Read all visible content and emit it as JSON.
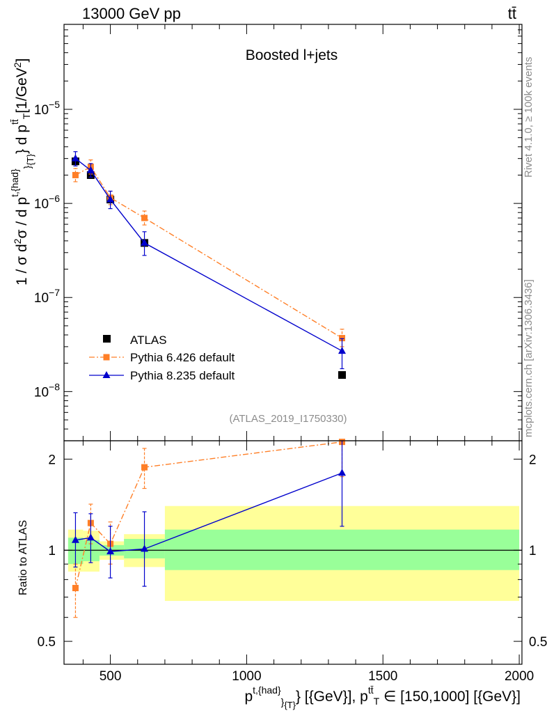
{
  "header": {
    "energy_label": "13000 GeV pp",
    "process_label": "tt̄"
  },
  "side_labels": {
    "rivet": "Rivet 4.1.0, ≥ 100k events",
    "mcplots": "mcplots.cern.ch [arXiv:1306.3436]"
  },
  "chart_data": [
    {
      "type": "scatter",
      "panel": "main",
      "title": "Boosted l+jets",
      "analysis_id": "(ATLAS_2019_I1750330)",
      "ylabel": "1 / σ d²σ / d p^{t,{had}}_{T} d p^{tt̄}_{T} [1/GeV²]",
      "yscale": "log",
      "ylim": [
        3e-09,
        8e-05
      ],
      "xlim": [
        330,
        2010
      ],
      "y_ticks": [
        {
          "value": 1e-08,
          "mantissa": "10",
          "exponent": "−8"
        },
        {
          "value": 1e-07,
          "mantissa": "10",
          "exponent": "−7"
        },
        {
          "value": 1e-06,
          "mantissa": "10",
          "exponent": "−6"
        },
        {
          "value": 1e-05,
          "mantissa": "10",
          "exponent": "−5"
        }
      ],
      "series": [
        {
          "name": "ATLAS",
          "style": "data",
          "color": "#000000",
          "marker": "square",
          "x": [
            372,
            428,
            500,
            625,
            1350
          ],
          "y": [
            2.8e-06,
            2e-06,
            1.1e-06,
            3.8e-07,
            1.5e-08
          ]
        },
        {
          "name": "Pythia 6.426 default",
          "style": "dashdot",
          "color": "#ff7f27",
          "marker": "square",
          "x": [
            372,
            428,
            500,
            625,
            1350
          ],
          "y": [
            2e-06,
            2.45e-06,
            1.15e-06,
            7e-07,
            3.7e-08
          ],
          "y_err_low": [
            1.7e-06,
            2.05e-06,
            9.7e-07,
            5.9e-07,
            3e-08
          ],
          "y_err_high": [
            2.35e-06,
            2.9e-06,
            1.35e-06,
            8.3e-07,
            4.6e-08
          ]
        },
        {
          "name": "Pythia 8.235 default",
          "style": "solid",
          "color": "#0000cc",
          "marker": "triangle",
          "x": [
            372,
            428,
            500,
            625,
            1350
          ],
          "y": [
            3e-06,
            2.25e-06,
            1.1e-06,
            3.8e-07,
            2.7e-08
          ],
          "y_err_low": [
            2.5e-06,
            1.9e-06,
            8.8e-07,
            2.8e-07,
            1.75e-08
          ],
          "y_err_high": [
            3.55e-06,
            2.65e-06,
            1.35e-06,
            5e-07,
            3.65e-08
          ]
        }
      ],
      "legend_position": "lower-left"
    },
    {
      "type": "scatter",
      "panel": "ratio",
      "ylabel": "Ratio to ATLAS",
      "xlabel": "p^{t,{had}}_{T} [{GeV}], p^{tt̄}_{T} ∈ [150,1000] [{GeV}]",
      "yscale": "log",
      "ylim": [
        0.42,
        2.3
      ],
      "xlim": [
        330,
        2010
      ],
      "x_ticks": [
        500,
        1000,
        1500,
        2000
      ],
      "y_ticks": [
        0.5,
        1,
        2
      ],
      "reference_line": 1,
      "bands": [
        {
          "x_low": 345,
          "x_high": 400,
          "inner": [
            0.9,
            1.1
          ],
          "outer": [
            0.85,
            1.17
          ]
        },
        {
          "x_low": 400,
          "x_high": 460,
          "inner": [
            0.92,
            1.08
          ],
          "outer": [
            0.85,
            1.16
          ]
        },
        {
          "x_low": 460,
          "x_high": 550,
          "inner": [
            0.96,
            1.04
          ],
          "outer": [
            0.93,
            1.07
          ]
        },
        {
          "x_low": 550,
          "x_high": 700,
          "inner": [
            0.94,
            1.09
          ],
          "outer": [
            0.88,
            1.13
          ]
        },
        {
          "x_low": 700,
          "x_high": 2000,
          "inner": [
            0.86,
            1.17
          ],
          "outer": [
            0.68,
            1.4
          ]
        }
      ],
      "band_colors": {
        "inner": "#99ff99",
        "outer": "#ffff99"
      },
      "series": [
        {
          "name": "Pythia 6.426 default",
          "style": "dashdot",
          "color": "#ff7f27",
          "marker": "square",
          "x": [
            372,
            428,
            500,
            625,
            1350
          ],
          "y": [
            0.75,
            1.23,
            1.05,
            1.88,
            2.28
          ],
          "y_err_low": [
            0.6,
            1.05,
            0.9,
            1.6,
            1.75
          ],
          "y_err_high": [
            0.9,
            1.42,
            1.24,
            2.17,
            2.3
          ]
        },
        {
          "name": "Pythia 8.235 default",
          "style": "solid",
          "color": "#0000cc",
          "marker": "triangle",
          "x": [
            372,
            428,
            500,
            625,
            1350
          ],
          "y": [
            1.08,
            1.1,
            0.99,
            1.01,
            1.8
          ],
          "y_err_low": [
            0.88,
            0.91,
            0.81,
            0.76,
            1.2
          ],
          "y_err_high": [
            1.33,
            1.32,
            1.2,
            1.34,
            2.3
          ]
        }
      ]
    }
  ]
}
